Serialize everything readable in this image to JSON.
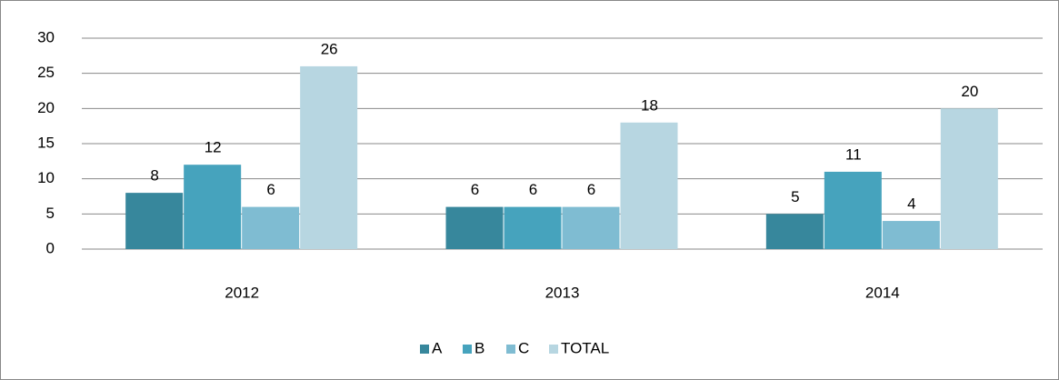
{
  "chart_data": {
    "type": "bar",
    "categories": [
      "2012",
      "2013",
      "2014"
    ],
    "series": [
      {
        "name": "A",
        "color": "#37879c",
        "values": [
          8,
          6,
          5
        ]
      },
      {
        "name": "B",
        "color": "#46a3bd",
        "values": [
          12,
          6,
          11
        ]
      },
      {
        "name": "C",
        "color": "#7fbcd2",
        "values": [
          6,
          6,
          4
        ]
      },
      {
        "name": "TOTAL",
        "color": "#b7d6e1",
        "values": [
          26,
          18,
          20
        ]
      }
    ],
    "ylim": [
      0,
      30
    ],
    "yticks": [
      0,
      5,
      10,
      15,
      20,
      25,
      30
    ],
    "grid": true,
    "legend": "bottom"
  }
}
